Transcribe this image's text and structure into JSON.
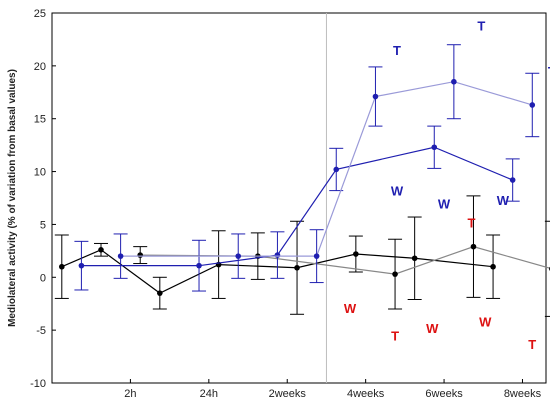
{
  "chart_data": {
    "type": "line",
    "ylabel": "Mediolateral activity (% of variation from basal values)",
    "xlabel": "",
    "ylim": [
      -10,
      25
    ],
    "yticks": [
      -10,
      -5,
      0,
      5,
      10,
      15,
      20,
      25
    ],
    "xlim": [
      0,
      12.6
    ],
    "x_tick_labels": [
      {
        "x": 2,
        "label": "2h"
      },
      {
        "x": 4,
        "label": "24h"
      },
      {
        "x": 6,
        "label": "2weeks"
      },
      {
        "x": 8,
        "label": "4weeks"
      },
      {
        "x": 10,
        "label": "6weeks"
      },
      {
        "x": 12,
        "label": "8weeks"
      }
    ],
    "grid": false,
    "divider_x": 7,
    "series": [
      {
        "color": "#000000",
        "marker_color": "#000000",
        "lineStyle": "solid",
        "points": [
          {
            "x": 0.25,
            "y": 1.0,
            "err": 3.0
          },
          {
            "x": 1.25,
            "y": 2.6,
            "err": 0.6
          },
          {
            "x": 2.75,
            "y": -1.5,
            "err": 1.5
          },
          {
            "x": 4.25,
            "y": 1.2,
            "err": 3.2
          },
          {
            "x": 6.25,
            "y": 0.9,
            "err": 4.4
          },
          {
            "x": 7.75,
            "y": 2.2,
            "err": 1.7
          },
          {
            "x": 9.25,
            "y": 1.8,
            "err": 3.9
          },
          {
            "x": 11.25,
            "y": 1.0,
            "err": 3.0
          }
        ]
      },
      {
        "color": "#888888",
        "marker_color": "#000000",
        "lineStyle": "solid",
        "points": [
          {
            "x": 2.25,
            "y": 2.1,
            "err": 0.8
          },
          {
            "x": 5.25,
            "y": 2.0,
            "err": 2.2
          },
          {
            "x": 8.75,
            "y": 0.3,
            "err": 3.3
          },
          {
            "x": 10.75,
            "y": 2.9,
            "err": 4.8
          },
          {
            "x": 12.75,
            "y": 0.8,
            "err": 4.5
          }
        ]
      },
      {
        "color": "#1f1fb0",
        "marker_color": "#1f1fb0",
        "lineStyle": "solid",
        "points": [
          {
            "x": 0.75,
            "y": 1.1,
            "err": 2.3
          },
          {
            "x": 3.75,
            "y": 1.1,
            "err": 2.4
          },
          {
            "x": 5.75,
            "y": 2.1,
            "err": 2.2
          },
          {
            "x": 7.25,
            "y": 10.2,
            "err": 2.0
          },
          {
            "x": 9.75,
            "y": 12.3,
            "err": 2.0
          },
          {
            "x": 11.75,
            "y": 9.2,
            "err": 2.0
          }
        ]
      },
      {
        "color": "#9a9ad8",
        "marker_color": "#1f1fb0",
        "lineStyle": "solid",
        "points": [
          {
            "x": 1.75,
            "y": 2.0,
            "err": 2.1
          },
          {
            "x": 4.75,
            "y": 2.0,
            "err": 2.1
          },
          {
            "x": 6.75,
            "y": 2.0,
            "err": 2.5
          },
          {
            "x": 8.25,
            "y": 17.1,
            "err": 2.8
          },
          {
            "x": 10.25,
            "y": 18.5,
            "err": 3.5
          },
          {
            "x": 12.25,
            "y": 16.3,
            "err": 3.0
          }
        ]
      }
    ],
    "annotations": [
      {
        "text": "T",
        "x": 8.8,
        "y": 21.5,
        "color": "#1f1fb0"
      },
      {
        "text": "W",
        "x": 8.8,
        "y": 8.2,
        "color": "#1f1fb0"
      },
      {
        "text": "T",
        "x": 10.95,
        "y": 23.8,
        "color": "#1f1fb0"
      },
      {
        "text": "W",
        "x": 10.0,
        "y": 7.0,
        "color": "#1f1fb0"
      },
      {
        "text": "T",
        "x": 12.75,
        "y": 19.5,
        "color": "#1f1fb0"
      },
      {
        "text": "W",
        "x": 11.5,
        "y": 7.3,
        "color": "#1f1fb0"
      },
      {
        "text": "W",
        "x": 7.6,
        "y": -2.9,
        "color": "#dd1111"
      },
      {
        "text": "T",
        "x": 8.75,
        "y": -5.5,
        "color": "#dd1111"
      },
      {
        "text": "W",
        "x": 9.7,
        "y": -4.8,
        "color": "#dd1111"
      },
      {
        "text": "T",
        "x": 10.7,
        "y": 5.2,
        "color": "#dd1111"
      },
      {
        "text": "W",
        "x": 11.05,
        "y": -4.2,
        "color": "#dd1111"
      },
      {
        "text": "T",
        "x": 12.25,
        "y": -6.3,
        "color": "#dd1111"
      }
    ]
  }
}
